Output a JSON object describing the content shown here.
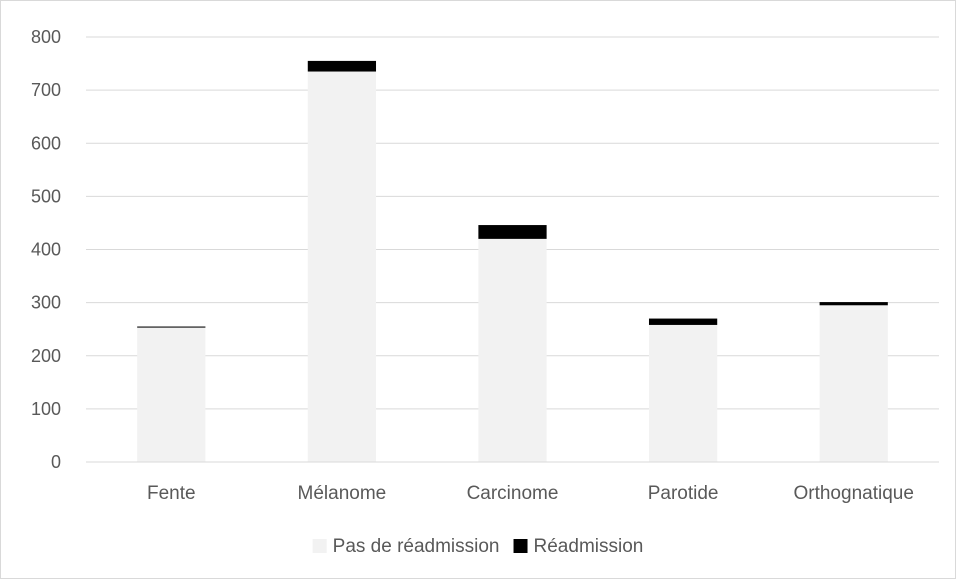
{
  "chart_data": {
    "type": "bar",
    "stacked": true,
    "categories": [
      "Fente",
      "Mélanome",
      "Carcinome",
      "Parotide",
      "Orthognatique"
    ],
    "series": [
      {
        "name": "Pas de réadmission",
        "color": "#f2f2f2",
        "values": [
          253,
          735,
          420,
          258,
          295
        ]
      },
      {
        "name": "Réadmission",
        "color": "#000000",
        "values": [
          2,
          20,
          26,
          12,
          6
        ]
      }
    ],
    "ylim": [
      0,
      800
    ],
    "yticks": [
      0,
      100,
      200,
      300,
      400,
      500,
      600,
      700,
      800
    ],
    "grid": true,
    "legend_position": "bottom",
    "title": "",
    "xlabel": "",
    "ylabel": ""
  }
}
